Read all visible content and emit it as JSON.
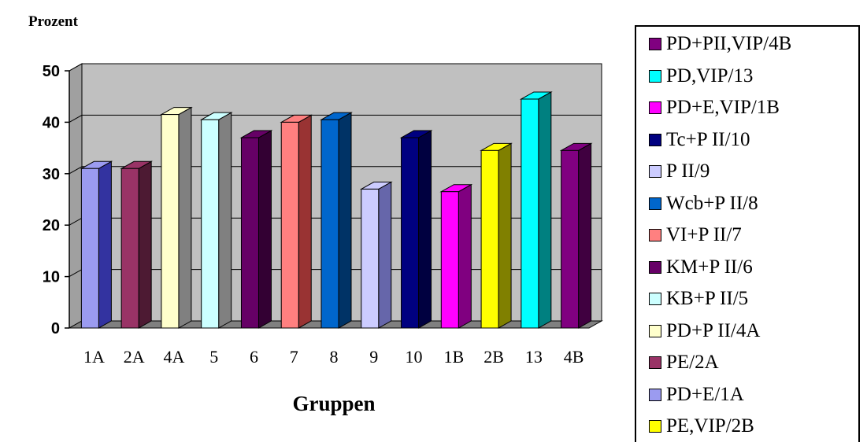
{
  "chart_data": {
    "type": "bar",
    "ylabel": "Prozent",
    "xlabel": "Gruppen",
    "ylim": [
      0,
      50
    ],
    "yticks": [
      "0",
      "10",
      "20",
      "30",
      "40",
      "50"
    ],
    "grid": true,
    "legend_position": "right",
    "categories": [
      "1A",
      "2A",
      "4A",
      "5",
      "6",
      "7",
      "8",
      "9",
      "10",
      "1B",
      "2B",
      "13",
      "4B"
    ],
    "values": [
      31,
      31,
      41.5,
      40.5,
      37,
      40,
      40.5,
      27,
      37,
      26.5,
      34.5,
      44.5,
      34.5
    ],
    "bar_colors": [
      "#9b9bf0",
      "#993366",
      "#ffffcc",
      "#ccffff",
      "#660066",
      "#ff8080",
      "#0066cc",
      "#ccccff",
      "#000080",
      "#ff00ff",
      "#ffff00",
      "#00ffff",
      "#800080"
    ],
    "side_colors": [
      "#3333a0",
      "#4d1a33",
      "#808080",
      "#808080",
      "#330033",
      "#993333",
      "#003366",
      "#6666aa",
      "#000040",
      "#800080",
      "#808000",
      "#008080",
      "#400040"
    ],
    "legend": [
      {
        "label": "PD+PII,VIP/4B",
        "color": "#800080"
      },
      {
        "label": "PD,VIP/13",
        "color": "#00ffff"
      },
      {
        "label": "PD+E,VIP/1B",
        "color": "#ff00ff"
      },
      {
        "label": "Tc+P II/10",
        "color": "#000080"
      },
      {
        "label": "P II/9",
        "color": "#ccccff"
      },
      {
        "label": "Wcb+P II/8",
        "color": "#0066cc"
      },
      {
        "label": "VI+P II/7",
        "color": "#ff8080"
      },
      {
        "label": "KM+P II/6",
        "color": "#660066"
      },
      {
        "label": "KB+P II/5",
        "color": "#ccffff"
      },
      {
        "label": "PD+P II/4A",
        "color": "#ffffcc"
      },
      {
        "label": "PE/2A",
        "color": "#993366"
      },
      {
        "label": "PD+E/1A",
        "color": "#9b9bf0"
      },
      {
        "label": "PE,VIP/2B",
        "color": "#ffff00"
      }
    ],
    "wall_color": "#c0c0c0",
    "floor_color": "#808080"
  }
}
